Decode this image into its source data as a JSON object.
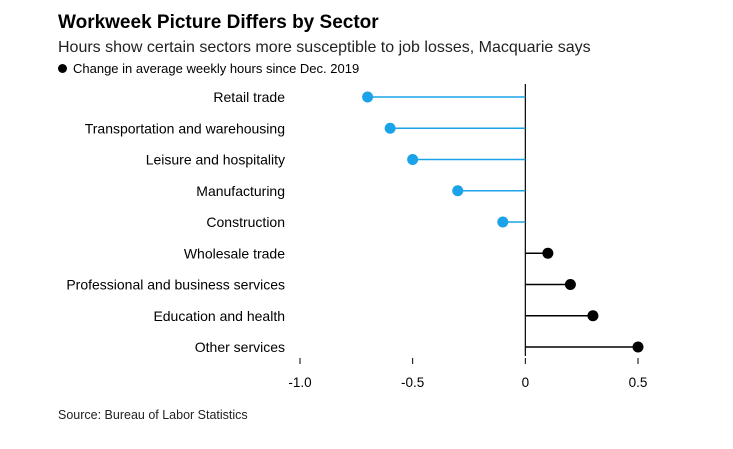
{
  "chart_data": {
    "type": "lollipop",
    "title": "Workweek Picture Differs by Sector",
    "subtitle": "Hours show certain sectors more susceptible to job losses, Macquarie says",
    "legend": "Change in average weekly hours since Dec. 2019",
    "source": "Source: Bureau of Labor Statistics",
    "categories": [
      "Retail trade",
      "Transportation and warehousing",
      "Leisure and hospitality",
      "Manufacturing",
      "Construction",
      "Wholesale trade",
      "Professional and business services",
      "Education and health",
      "Other services"
    ],
    "values": [
      -0.7,
      -0.6,
      -0.5,
      -0.3,
      -0.1,
      0.1,
      0.2,
      0.3,
      0.5
    ],
    "xlim": [
      -1.0,
      0.5
    ],
    "xticks": [
      -1.0,
      -0.5,
      0,
      0.5
    ],
    "xtick_labels": [
      "-1.0",
      "-0.5",
      "0",
      "0.5"
    ],
    "colors": {
      "negative": "#1aa3e8",
      "positive": "#000000"
    }
  }
}
